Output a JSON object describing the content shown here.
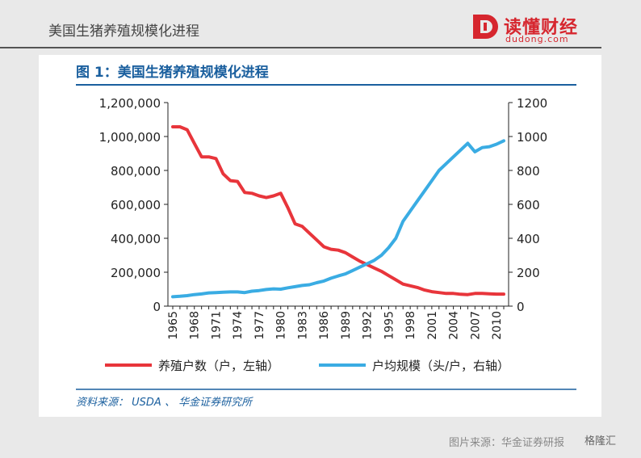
{
  "header": {
    "title": "美国生猪养殖规模化进程",
    "brand_name": "读懂财经",
    "brand_url": "dudong.com",
    "brand_color": "#d6262e"
  },
  "figure": {
    "title": "图 1：美国生猪养殖规模化进程",
    "source_prefix": "资料来源：",
    "source_usda": "USDA",
    "source_sep": "、",
    "source_firm": "华金证券研究所"
  },
  "footer": {
    "source": "图片来源：华金证券研报",
    "brand": "格隆汇"
  },
  "chart_data": {
    "type": "line",
    "x": [
      1965,
      1966,
      1967,
      1968,
      1969,
      1970,
      1971,
      1972,
      1973,
      1974,
      1975,
      1976,
      1977,
      1978,
      1979,
      1980,
      1981,
      1982,
      1983,
      1984,
      1985,
      1986,
      1987,
      1988,
      1989,
      1990,
      1991,
      1992,
      1993,
      1994,
      1995,
      1996,
      1997,
      1998,
      1999,
      2000,
      2001,
      2002,
      2003,
      2004,
      2005,
      2006,
      2007,
      2008,
      2009,
      2010,
      2011
    ],
    "x_ticks": [
      "1965",
      "1968",
      "1971",
      "1974",
      "1977",
      "1980",
      "1983",
      "1986",
      "1989",
      "1992",
      "1995",
      "1998",
      "2001",
      "2004",
      "2007",
      "2010"
    ],
    "series": [
      {
        "name": "养殖户数（户，左轴）",
        "axis": "left",
        "color": "#e8353b",
        "values": [
          1057000,
          1057000,
          1040000,
          960000,
          880000,
          880000,
          870000,
          780000,
          740000,
          735000,
          670000,
          665000,
          650000,
          640000,
          650000,
          665000,
          580000,
          485000,
          470000,
          430000,
          390000,
          350000,
          335000,
          330000,
          315000,
          290000,
          265000,
          245000,
          225000,
          205000,
          180000,
          155000,
          130000,
          120000,
          110000,
          95000,
          85000,
          80000,
          75000,
          75000,
          70000,
          68000,
          75000,
          75000,
          73000,
          71000,
          71000
        ]
      },
      {
        "name": "户均规模（头/户，右轴）",
        "axis": "right",
        "color": "#3aace3",
        "values": [
          55,
          58,
          62,
          68,
          72,
          78,
          80,
          82,
          84,
          84,
          80,
          88,
          92,
          98,
          102,
          100,
          108,
          115,
          122,
          126,
          138,
          148,
          165,
          178,
          190,
          210,
          230,
          250,
          270,
          300,
          345,
          400,
          500,
          560,
          620,
          680,
          740,
          800,
          840,
          880,
          920,
          960,
          910,
          935,
          940,
          955,
          975
        ]
      }
    ],
    "left_axis": {
      "ticks": [
        "0",
        "200,000",
        "400,000",
        "600,000",
        "800,000",
        "1,000,000",
        "1,200,000"
      ],
      "ylim": [
        0,
        1200000
      ]
    },
    "right_axis": {
      "ticks": [
        "0",
        "200",
        "400",
        "600",
        "800",
        "1000",
        "1200"
      ],
      "ylim": [
        0,
        1200
      ]
    },
    "grid": false,
    "legend_placement": "bottom"
  }
}
